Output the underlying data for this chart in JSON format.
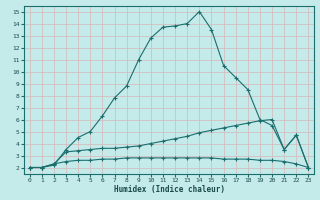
{
  "xlabel": "Humidex (Indice chaleur)",
  "bg_color": "#c5eaea",
  "grid_color": "#b0d4d4",
  "line_color": "#1a6e6e",
  "xlim": [
    -0.5,
    23.5
  ],
  "ylim": [
    1.5,
    15.5
  ],
  "xticks": [
    0,
    1,
    2,
    3,
    4,
    5,
    6,
    7,
    8,
    9,
    10,
    11,
    12,
    13,
    14,
    15,
    16,
    17,
    18,
    19,
    20,
    21,
    22,
    23
  ],
  "yticks": [
    2,
    3,
    4,
    5,
    6,
    7,
    8,
    9,
    10,
    11,
    12,
    13,
    14,
    15
  ],
  "curve1_x": [
    0,
    1,
    2,
    3,
    4,
    5,
    6,
    7,
    8,
    9,
    10,
    11,
    12,
    13,
    14,
    15,
    16,
    17,
    18,
    19,
    20,
    21,
    22,
    23
  ],
  "curve1_y": [
    2.0,
    2.0,
    2.2,
    3.5,
    4.5,
    5.0,
    6.3,
    7.8,
    8.8,
    11.0,
    12.8,
    13.7,
    13.8,
    14.0,
    15.0,
    13.5,
    10.5,
    9.5,
    8.5,
    6.0,
    5.5,
    3.5,
    4.7,
    2.0
  ],
  "curve2_x": [
    0,
    1,
    2,
    3,
    4,
    5,
    6,
    7,
    8,
    9,
    10,
    11,
    12,
    13,
    14,
    15,
    16,
    17,
    18,
    19,
    20,
    21,
    22,
    23
  ],
  "curve2_y": [
    2.0,
    2.0,
    2.3,
    3.3,
    3.4,
    3.5,
    3.6,
    3.6,
    3.7,
    3.8,
    4.0,
    4.2,
    4.4,
    4.6,
    4.9,
    5.1,
    5.3,
    5.5,
    5.7,
    5.9,
    6.0,
    3.5,
    4.7,
    2.0
  ],
  "curve3_x": [
    0,
    1,
    2,
    3,
    4,
    5,
    6,
    7,
    8,
    9,
    10,
    11,
    12,
    13,
    14,
    15,
    16,
    17,
    18,
    19,
    20,
    21,
    22,
    23
  ],
  "curve3_y": [
    2.0,
    2.0,
    2.3,
    2.5,
    2.6,
    2.6,
    2.7,
    2.7,
    2.8,
    2.8,
    2.8,
    2.8,
    2.8,
    2.8,
    2.8,
    2.8,
    2.7,
    2.7,
    2.7,
    2.6,
    2.6,
    2.5,
    2.3,
    2.0
  ]
}
